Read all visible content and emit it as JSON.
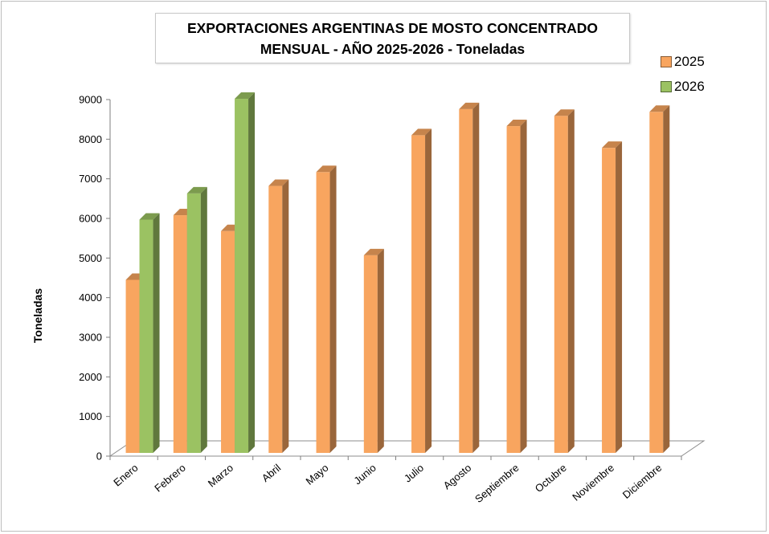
{
  "chart_data": {
    "type": "bar",
    "title_line1": "EXPORTACIONES ARGENTINAS DE MOSTO CONCENTRADO",
    "title_line2": "MENSUAL - AÑO 2025-2026 - Toneladas",
    "xlabel": "",
    "ylabel": "Toneladas",
    "ylim": [
      0,
      9000
    ],
    "yticks": [
      "0",
      "1000",
      "2000",
      "3000",
      "4000",
      "5000",
      "6000",
      "7000",
      "8000",
      "9000"
    ],
    "categories": [
      "Enero",
      "Febrero",
      "Marzo",
      "Abril",
      "Mayo",
      "Junio",
      "Julio",
      "Agosto",
      "Septiembre",
      "Octubre",
      "Noviembre",
      "Diciembre"
    ],
    "series": [
      {
        "name": "2025",
        "color": "#F8A55F",
        "values": [
          4450,
          6080,
          5680,
          6820,
          7170,
          5070,
          8100,
          8760,
          8330,
          8590,
          7780,
          8690
        ]
      },
      {
        "name": "2026",
        "color": "#9BC262",
        "values": [
          5970,
          6630,
          9020,
          null,
          null,
          null,
          null,
          null,
          null,
          null,
          null,
          null
        ]
      }
    ],
    "legend_position": "top-right",
    "grid": false
  }
}
